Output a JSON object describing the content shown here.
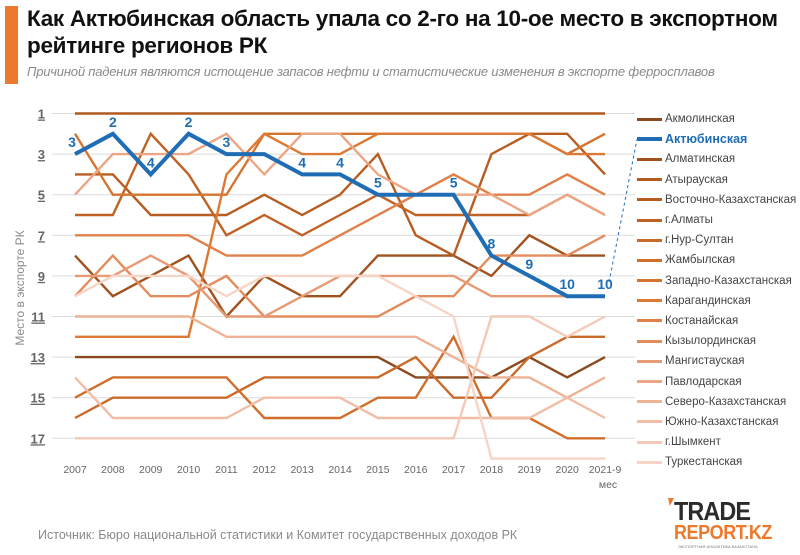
{
  "header": {
    "title": "Как Актюбинская область упала со 2-го на 10-ое место в экспортном рейтинге регионов РК",
    "subtitle": "Причиной падения являются истощение запасов нефти и статистические изменения в экспорте ферросплавов"
  },
  "footer": {
    "source": "Источник: Бюро национальной статистики и Комитет государственных доходов РК",
    "logo_line1": "TRADE",
    "logo_line2": "REPORT.KZ",
    "logo_tagline": "ЭКСПОРТНАЯ АНАЛИТИКА КАЗАХСТАНА"
  },
  "colors": {
    "highlight": "#1f6db5",
    "accent": "#ec7a2c",
    "grid": "#dcdcdc"
  },
  "chart_data": {
    "type": "line",
    "title": "Как Актюбинская область упала со 2-го на 10-ое место в экспортном рейтинге регионов РК",
    "xlabel": "",
    "ylabel": "Место в экспорте РК",
    "x": [
      "2007",
      "2008",
      "2009",
      "2010",
      "2011",
      "2012",
      "2013",
      "2014",
      "2015",
      "2016",
      "2017",
      "2018",
      "2019",
      "2020",
      "2021-9 мес"
    ],
    "y_ticks": [
      "1",
      "3",
      "5",
      "7",
      "9",
      "11",
      "13",
      "15",
      "17"
    ],
    "ylim": [
      1,
      17
    ],
    "y_inverted": true,
    "grid": true,
    "legend_position": "right",
    "highlight_series": "Актюбинская",
    "series": [
      {
        "name": "Акмолинская",
        "color": "#8b4a1e",
        "values": [
          13,
          13,
          13,
          13,
          13,
          13,
          13,
          13,
          13,
          14,
          14,
          14,
          13,
          14,
          13
        ]
      },
      {
        "name": "Актюбинская",
        "color": "#1f6db5",
        "values": [
          3,
          2,
          4,
          2,
          3,
          3,
          4,
          4,
          5,
          5,
          5,
          8,
          9,
          10,
          10
        ],
        "labels": [
          "3",
          "2",
          "4",
          "2",
          "3",
          "",
          "4",
          "4",
          "5",
          "",
          "5",
          "8",
          "9",
          "10",
          "10"
        ]
      },
      {
        "name": "Алматинская",
        "color": "#a0531f",
        "values": [
          8,
          10,
          9,
          8,
          11,
          9,
          10,
          10,
          8,
          8,
          8,
          9,
          7,
          8,
          8
        ]
      },
      {
        "name": "Атырауская",
        "color": "#b35a20",
        "values": [
          1,
          1,
          1,
          1,
          1,
          1,
          1,
          1,
          1,
          1,
          1,
          1,
          1,
          1,
          1
        ]
      },
      {
        "name": "Восточно-Казахстанская",
        "color": "#b85d22",
        "values": [
          4,
          4,
          6,
          6,
          6,
          5,
          6,
          5,
          3,
          7,
          8,
          3,
          2,
          2,
          4
        ]
      },
      {
        "name": "г.Алматы",
        "color": "#c06226",
        "values": [
          6,
          6,
          2,
          4,
          7,
          6,
          7,
          6,
          5,
          6,
          6,
          6,
          6,
          5,
          6
        ]
      },
      {
        "name": "г.Нур-Султан",
        "color": "#c96a2a",
        "values": [
          16,
          15,
          15,
          15,
          15,
          14,
          14,
          14,
          14,
          13,
          15,
          15,
          13,
          12,
          12
        ]
      },
      {
        "name": "Жамбылская",
        "color": "#d06f2c",
        "values": [
          15,
          14,
          14,
          14,
          14,
          16,
          16,
          16,
          15,
          15,
          12,
          16,
          16,
          17,
          17
        ]
      },
      {
        "name": "Западно-Казахстанская",
        "color": "#d5742f",
        "values": [
          2,
          5,
          5,
          5,
          5,
          2,
          2,
          2,
          2,
          2,
          2,
          2,
          2,
          3,
          2
        ]
      },
      {
        "name": "Карагандинская",
        "color": "#dc7a35",
        "values": [
          12,
          12,
          12,
          12,
          4,
          2,
          3,
          3,
          2,
          2,
          2,
          2,
          2,
          3,
          3
        ]
      },
      {
        "name": "Костанайская",
        "color": "#e1814a",
        "values": [
          7,
          7,
          7,
          7,
          8,
          8,
          8,
          7,
          6,
          5,
          4,
          5,
          5,
          4,
          5
        ]
      },
      {
        "name": "Кызылординская",
        "color": "#e38c5e",
        "values": [
          10,
          8,
          10,
          10,
          9,
          11,
          11,
          11,
          11,
          10,
          10,
          8,
          8,
          8,
          7
        ]
      },
      {
        "name": "Мангистауская",
        "color": "#e79a74",
        "values": [
          9,
          9,
          8,
          9,
          11,
          11,
          10,
          9,
          9,
          9,
          9,
          10,
          10,
          10,
          10
        ]
      },
      {
        "name": "Павлодарская",
        "color": "#eba685",
        "values": [
          5,
          3,
          3,
          3,
          2,
          4,
          2,
          2,
          4,
          5,
          5,
          5,
          6,
          5,
          6
        ]
      },
      {
        "name": "Северо-Казахстанская",
        "color": "#eeb296",
        "values": [
          11,
          11,
          11,
          11,
          12,
          12,
          12,
          12,
          12,
          12,
          13,
          14,
          14,
          15,
          14
        ]
      },
      {
        "name": "Южно-Казахстанская",
        "color": "#f1bda7",
        "values": [
          14,
          16,
          16,
          16,
          16,
          15,
          15,
          15,
          16,
          16,
          16,
          16,
          16,
          15,
          16
        ]
      },
      {
        "name": "г.Шымкент",
        "color": "#f4c9b8",
        "values": [
          17,
          17,
          17,
          17,
          17,
          17,
          17,
          17,
          17,
          17,
          17,
          11,
          11,
          12,
          11
        ]
      },
      {
        "name": "Туркестанская",
        "color": "#f6d4c6",
        "values": [
          10,
          9,
          9,
          9,
          10,
          9,
          9,
          9,
          9,
          10,
          11,
          18,
          18,
          18,
          18
        ]
      }
    ]
  }
}
